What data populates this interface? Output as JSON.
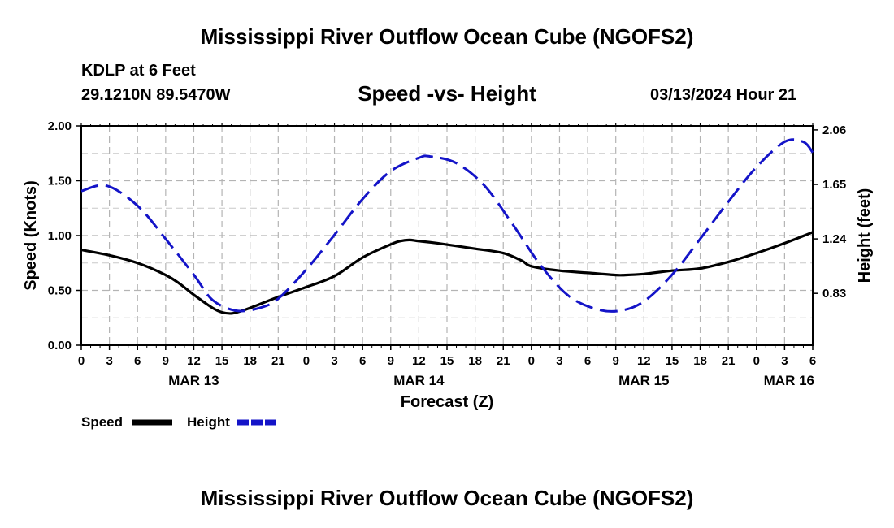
{
  "header": {
    "title": "Mississippi River Outflow Ocean Cube (NGOFS2)",
    "station": "KDLP at 6 Feet",
    "coords": "29.1210N  89.5470W",
    "subtitle": "Speed -vs- Height",
    "datetime": "03/13/2024 Hour 21"
  },
  "footer": {
    "title": "Mississippi River Outflow Ocean Cube (NGOFS2)"
  },
  "chart_data": {
    "type": "line",
    "xlabel": "Forecast (Z)",
    "ylabel": "Speed (Knots)",
    "y2label": "Height (feet)",
    "xlim": [
      0,
      78
    ],
    "ylim": [
      0,
      2.0
    ],
    "y2lim": [
      0.44,
      2.09
    ],
    "grid": true,
    "x_tick_labels": [
      "0",
      "3",
      "6",
      "9",
      "12",
      "15",
      "18",
      "21",
      "0",
      "3",
      "6",
      "9",
      "12",
      "15",
      "18",
      "21",
      "0",
      "3",
      "6",
      "9",
      "12",
      "15",
      "18",
      "21",
      "0",
      "3",
      "6"
    ],
    "date_labels": [
      {
        "x": 12,
        "label": "MAR 13"
      },
      {
        "x": 36,
        "label": "MAR 14"
      },
      {
        "x": 60,
        "label": "MAR 15"
      },
      {
        "x": 78,
        "label": "MAR 16"
      }
    ],
    "y_ticks": [
      "0.00",
      "0.50",
      "1.00",
      "1.50",
      "2.00"
    ],
    "y2_ticks": [
      "0.83",
      "1.24",
      "1.65",
      "2.06"
    ],
    "legend": [
      {
        "name": "Speed",
        "color": "#000000",
        "style": "solid"
      },
      {
        "name": "Height",
        "color": "#1414c8",
        "style": "dashed"
      }
    ],
    "series": [
      {
        "name": "Speed",
        "axis": "left",
        "color": "#000000",
        "style": "solid",
        "x": [
          0,
          3,
          6,
          9,
          10.5,
          12,
          14,
          15,
          16,
          17,
          18,
          21,
          24,
          27,
          30,
          33,
          34,
          35,
          36,
          38,
          42,
          45,
          47,
          48,
          51,
          54,
          57,
          58,
          60,
          63,
          66,
          69,
          72,
          75,
          78
        ],
        "y": [
          0.87,
          0.82,
          0.75,
          0.64,
          0.56,
          0.46,
          0.34,
          0.3,
          0.29,
          0.31,
          0.34,
          0.44,
          0.53,
          0.63,
          0.8,
          0.92,
          0.95,
          0.96,
          0.95,
          0.93,
          0.88,
          0.84,
          0.77,
          0.72,
          0.68,
          0.66,
          0.64,
          0.64,
          0.65,
          0.68,
          0.7,
          0.76,
          0.84,
          0.93,
          1.03
        ]
      },
      {
        "name": "Height",
        "axis": "right",
        "color": "#1414c8",
        "style": "dashed",
        "x": [
          0,
          2.7,
          6,
          9,
          12,
          14,
          16.5,
          19,
          21,
          24,
          27,
          30,
          33,
          36,
          37.2,
          40,
          43,
          46,
          49,
          52,
          55,
          57.5,
          60,
          63,
          66,
          69,
          72,
          75,
          77,
          78
        ],
        "y": [
          1.6,
          1.64,
          1.49,
          1.24,
          0.97,
          0.78,
          0.7,
          0.72,
          0.79,
          1.01,
          1.27,
          1.54,
          1.75,
          1.85,
          1.86,
          1.81,
          1.64,
          1.35,
          1.04,
          0.81,
          0.71,
          0.7,
          0.77,
          0.97,
          1.24,
          1.52,
          1.78,
          1.97,
          1.97,
          1.89
        ]
      }
    ]
  }
}
